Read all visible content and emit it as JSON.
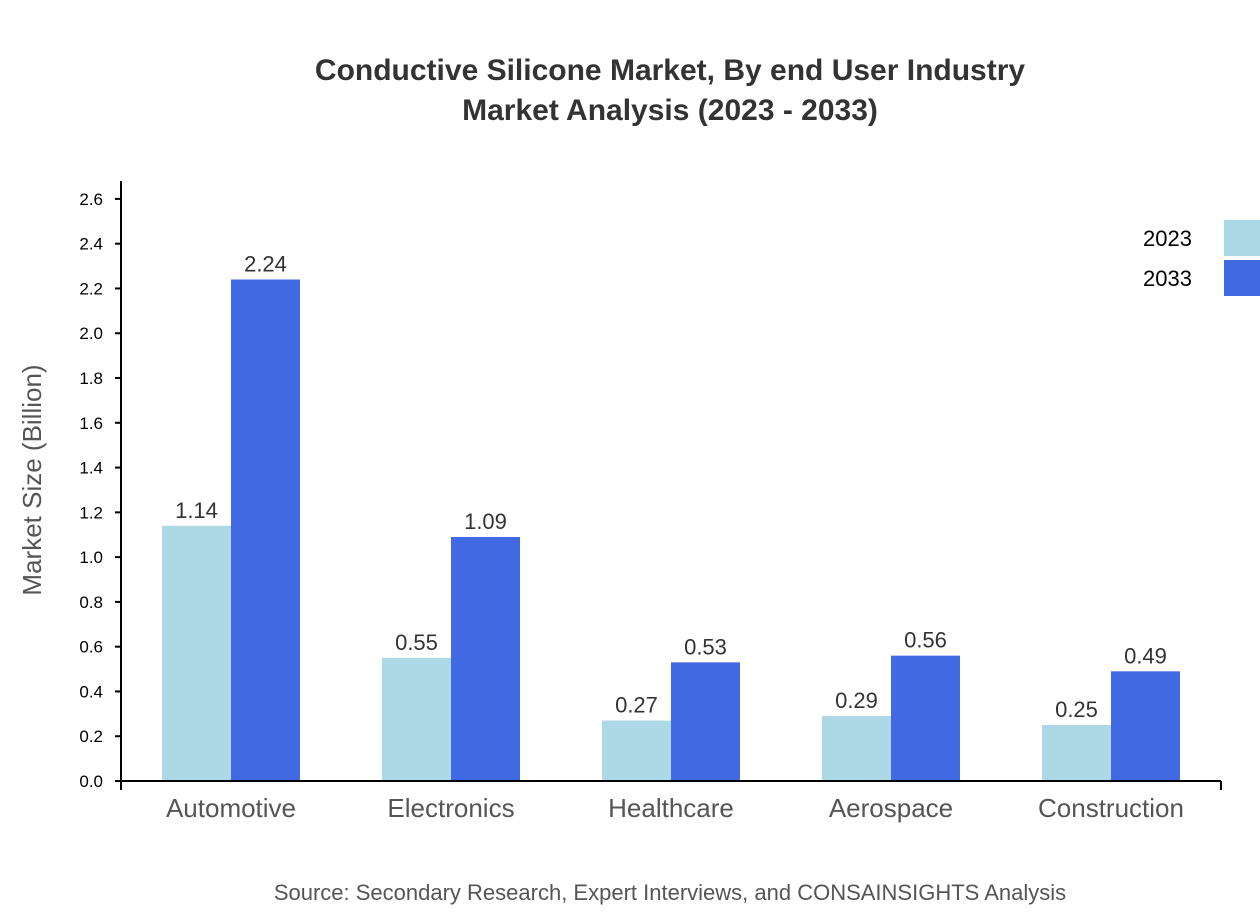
{
  "chart_data": {
    "type": "bar",
    "title": "Conductive Silicone Market, By end User Industry",
    "subtitle": "Market Analysis (2023 - 2033)",
    "xlabel": "",
    "ylabel": "Market Size (Billion)",
    "source": "Source: Secondary Research, Expert Interviews, and CONSAINSIGHTS Analysis",
    "categories": [
      "Automotive",
      "Electronics",
      "Healthcare",
      "Aerospace",
      "Construction"
    ],
    "series": [
      {
        "name": "2023",
        "color": "#ADD8E6",
        "values": [
          1.14,
          0.55,
          0.27,
          0.29,
          0.25
        ]
      },
      {
        "name": "2033",
        "color": "#4169E1",
        "values": [
          2.24,
          1.09,
          0.53,
          0.56,
          0.49
        ]
      }
    ],
    "ylim": [
      0,
      2.68
    ],
    "yticks": [
      "0.0",
      "0.2",
      "0.4",
      "0.6",
      "0.8",
      "1.0",
      "1.2",
      "1.4",
      "1.6",
      "1.8",
      "2.0",
      "2.2",
      "2.4",
      "2.6"
    ],
    "grid": false,
    "legend": "top-right"
  }
}
